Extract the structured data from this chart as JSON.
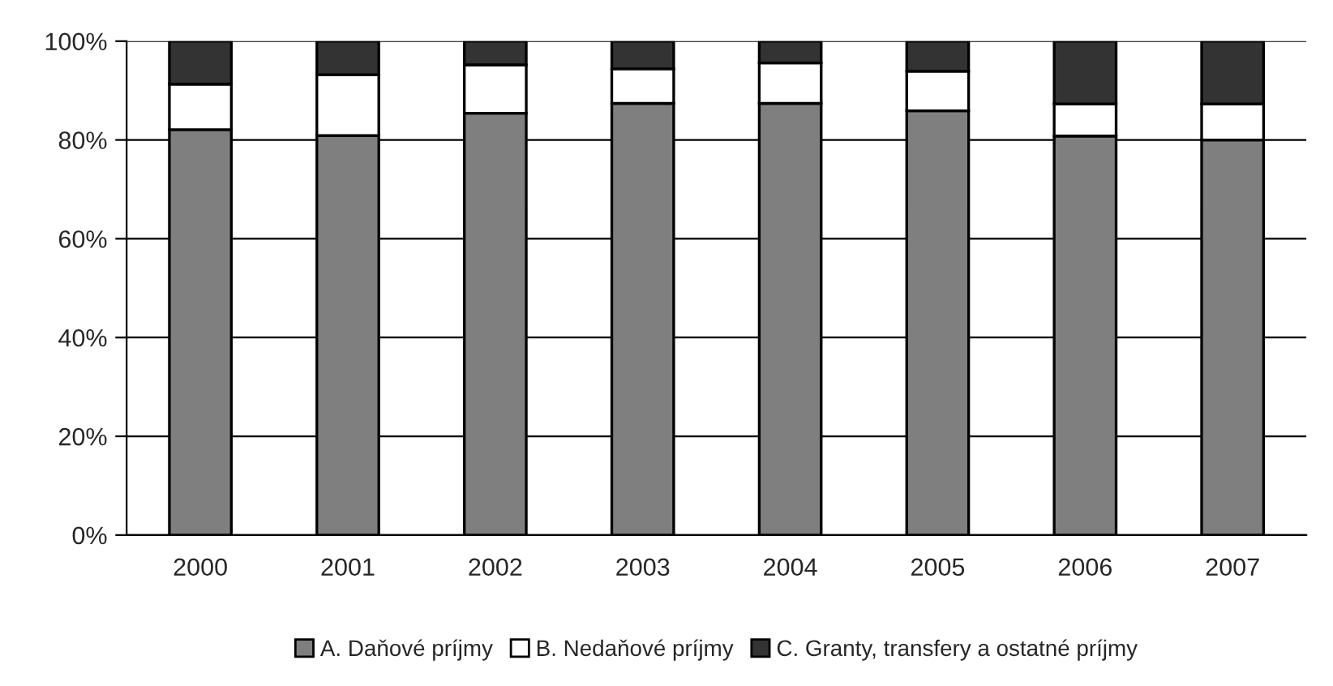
{
  "chart_data": {
    "type": "bar",
    "stacked": true,
    "categories": [
      "2000",
      "2001",
      "2002",
      "2003",
      "2004",
      "2005",
      "2006",
      "2007"
    ],
    "series": [
      {
        "name": "A. Daňové príjmy",
        "color": "#7f7f7f",
        "values": [
          82.1,
          80.9,
          85.4,
          87.4,
          87.4,
          85.9,
          80.8,
          80.0
        ]
      },
      {
        "name": "B. Nedaňové príjmy",
        "color": "#ffffff",
        "values": [
          9.2,
          12.3,
          9.8,
          7.0,
          8.2,
          8.0,
          6.5,
          7.3
        ]
      },
      {
        "name": "C. Granty, transfery a ostatné príjmy",
        "color": "#333333",
        "values": [
          8.7,
          6.8,
          4.8,
          5.6,
          4.4,
          6.1,
          12.7,
          12.7
        ]
      }
    ],
    "ylim": [
      0,
      100
    ],
    "yticks": [
      {
        "value": 0,
        "label": "0%"
      },
      {
        "value": 20,
        "label": "20%"
      },
      {
        "value": 40,
        "label": "40%"
      },
      {
        "value": 60,
        "label": "60%"
      },
      {
        "value": 80,
        "label": "80%"
      },
      {
        "value": 100,
        "label": "100%"
      }
    ],
    "grid": "y",
    "legend": "bottom"
  }
}
